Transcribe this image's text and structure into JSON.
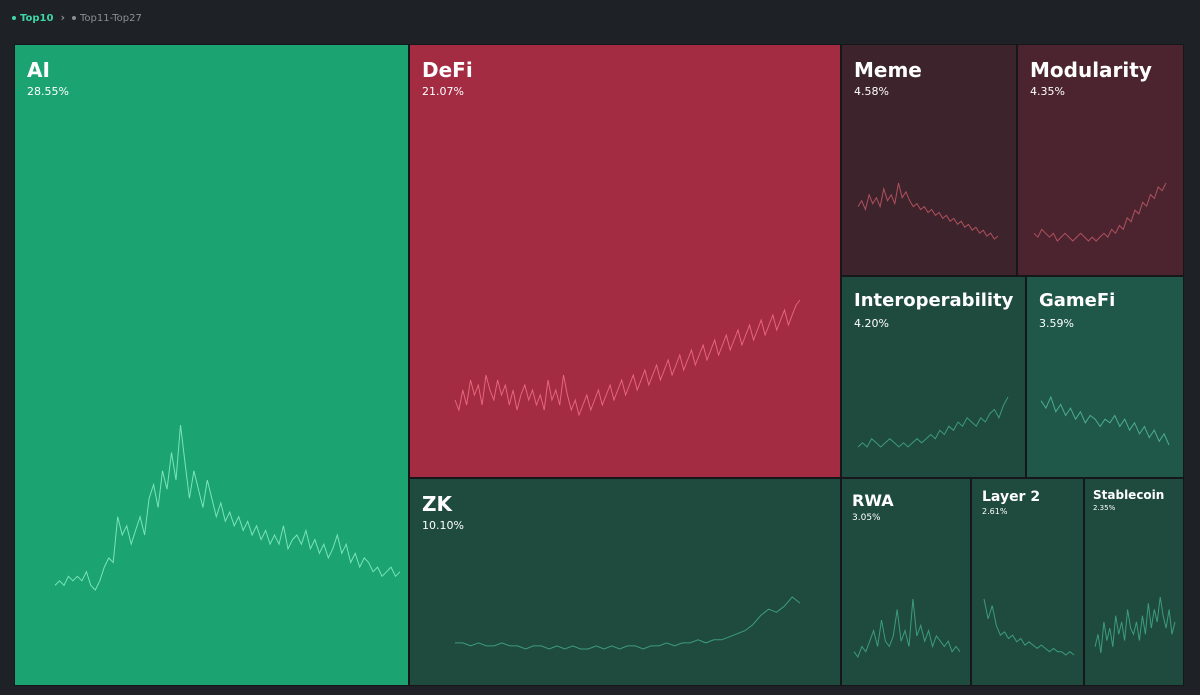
{
  "tabs": [
    {
      "label": "Top10",
      "active": true
    },
    {
      "label": "Top11-Top27",
      "active": false
    }
  ],
  "chart_data": {
    "type": "treemap",
    "title": "",
    "colors": {
      "strong_green": "#1ba372",
      "strong_red": "#a32b42",
      "dark_green": "#1f4a3e",
      "mid_green": "#1f5848",
      "dark_red": "#3d232b",
      "mid_red": "#4b2430"
    },
    "series": [
      {
        "name": "AI",
        "share": "28.55%",
        "value": 28.55,
        "color": "#1ba372",
        "line": "#7be3b9",
        "trend": [
          3,
          4,
          3,
          5,
          4,
          5,
          4,
          6,
          3,
          2,
          4,
          7,
          9,
          8,
          18,
          14,
          16,
          12,
          15,
          18,
          14,
          22,
          25,
          20,
          28,
          24,
          32,
          26,
          38,
          30,
          22,
          28,
          24,
          20,
          26,
          22,
          18,
          21,
          17,
          19,
          16,
          18,
          15,
          17,
          14,
          16,
          13,
          15,
          12,
          14,
          12,
          16,
          11,
          13,
          14,
          12,
          15,
          11,
          13,
          10,
          12,
          9,
          11,
          14,
          10,
          12,
          8,
          10,
          7,
          9,
          8,
          6,
          7,
          5,
          6,
          7,
          5,
          6
        ]
      },
      {
        "name": "DeFi",
        "share": "21.07%",
        "value": 21.07,
        "color": "#a32b42",
        "line": "#e8657c",
        "trend": [
          10,
          8,
          12,
          9,
          14,
          11,
          13,
          9,
          15,
          12,
          10,
          14,
          11,
          13,
          9,
          12,
          8,
          11,
          13,
          10,
          12,
          9,
          11,
          8,
          14,
          10,
          12,
          9,
          15,
          11,
          8,
          10,
          7,
          9,
          11,
          8,
          10,
          12,
          9,
          11,
          13,
          10,
          12,
          14,
          11,
          13,
          15,
          12,
          14,
          16,
          13,
          15,
          17,
          14,
          16,
          18,
          15,
          17,
          19,
          16,
          18,
          20,
          17,
          19,
          21,
          18,
          20,
          22,
          19,
          21,
          23,
          20,
          22,
          24,
          21,
          23,
          25,
          22,
          24,
          26,
          23,
          25,
          27,
          24,
          26,
          28,
          25,
          27,
          29,
          30
        ]
      },
      {
        "name": "Meme",
        "share": "4.58%",
        "value": 4.58,
        "color": "#3d232b",
        "line": "#b0505f",
        "trend": [
          14,
          16,
          13,
          18,
          15,
          17,
          14,
          20,
          16,
          18,
          15,
          22,
          17,
          19,
          16,
          14,
          15,
          13,
          14,
          12,
          13,
          11,
          12,
          10,
          11,
          9,
          10,
          8,
          9,
          7,
          8,
          6,
          7,
          5,
          6,
          4,
          5,
          3,
          4
        ]
      },
      {
        "name": "Modularity",
        "share": "4.35%",
        "value": 4.35,
        "color": "#4b2430",
        "line": "#b0505f",
        "trend": [
          4,
          3,
          5,
          4,
          3,
          4,
          2,
          3,
          4,
          3,
          2,
          3,
          4,
          3,
          2,
          3,
          2,
          3,
          4,
          3,
          5,
          4,
          6,
          5,
          8,
          7,
          10,
          9,
          12,
          11,
          14,
          13,
          16,
          15,
          17
        ]
      },
      {
        "name": "Interoperability",
        "share": "4.20%",
        "value": 4.2,
        "color": "#1f4a3e",
        "line": "#3c9c7b",
        "trend": [
          3,
          4,
          3,
          5,
          4,
          3,
          4,
          5,
          4,
          3,
          4,
          3,
          4,
          5,
          4,
          5,
          6,
          5,
          7,
          6,
          8,
          7,
          9,
          8,
          10,
          9,
          8,
          10,
          9,
          11,
          12,
          10,
          13,
          15
        ]
      },
      {
        "name": "GameFi",
        "share": "3.59%",
        "value": 3.59,
        "color": "#1f5848",
        "line": "#4cae8a",
        "trend": [
          18,
          16,
          19,
          15,
          17,
          14,
          16,
          13,
          15,
          12,
          14,
          13,
          11,
          13,
          12,
          14,
          11,
          13,
          10,
          12,
          9,
          11,
          8,
          10,
          7,
          9,
          6
        ]
      },
      {
        "name": "ZK",
        "share": "10.10%",
        "value": 10.1,
        "color": "#1f4a3e",
        "line": "#3c9c7b",
        "trend": [
          3,
          3,
          2,
          3,
          2,
          2,
          3,
          2,
          2,
          1,
          2,
          2,
          1,
          2,
          1,
          2,
          1,
          1,
          2,
          1,
          2,
          1,
          2,
          2,
          1,
          2,
          2,
          3,
          2,
          3,
          3,
          4,
          3,
          4,
          4,
          5,
          6,
          7,
          9,
          12,
          14,
          13,
          15,
          18,
          16
        ]
      },
      {
        "name": "RWA",
        "share": "3.05%",
        "value": 3.05,
        "color": "#1f4a3e",
        "line": "#3c9c7b",
        "trend": [
          4,
          3,
          5,
          4,
          6,
          8,
          5,
          10,
          6,
          5,
          7,
          12,
          6,
          8,
          5,
          14,
          7,
          9,
          6,
          8,
          5,
          7,
          6,
          5,
          6,
          4,
          5,
          4
        ]
      },
      {
        "name": "Layer 2",
        "share": "2.61%",
        "value": 2.61,
        "color": "#1f4a3e",
        "line": "#3c9c7b",
        "trend": [
          20,
          14,
          18,
          12,
          9,
          10,
          8,
          9,
          7,
          8,
          6,
          7,
          6,
          5,
          6,
          5,
          4,
          5,
          4,
          4,
          3,
          4,
          3
        ]
      },
      {
        "name": "Stablecoin",
        "share": "2.35%",
        "value": 2.35,
        "color": "#1f4a3e",
        "line": "#3c9c7b",
        "trend": [
          8,
          10,
          7,
          12,
          9,
          11,
          8,
          13,
          10,
          12,
          9,
          14,
          11,
          10,
          12,
          9,
          13,
          10,
          15,
          11,
          14,
          12,
          16,
          13,
          11,
          14,
          10,
          12
        ]
      }
    ]
  }
}
